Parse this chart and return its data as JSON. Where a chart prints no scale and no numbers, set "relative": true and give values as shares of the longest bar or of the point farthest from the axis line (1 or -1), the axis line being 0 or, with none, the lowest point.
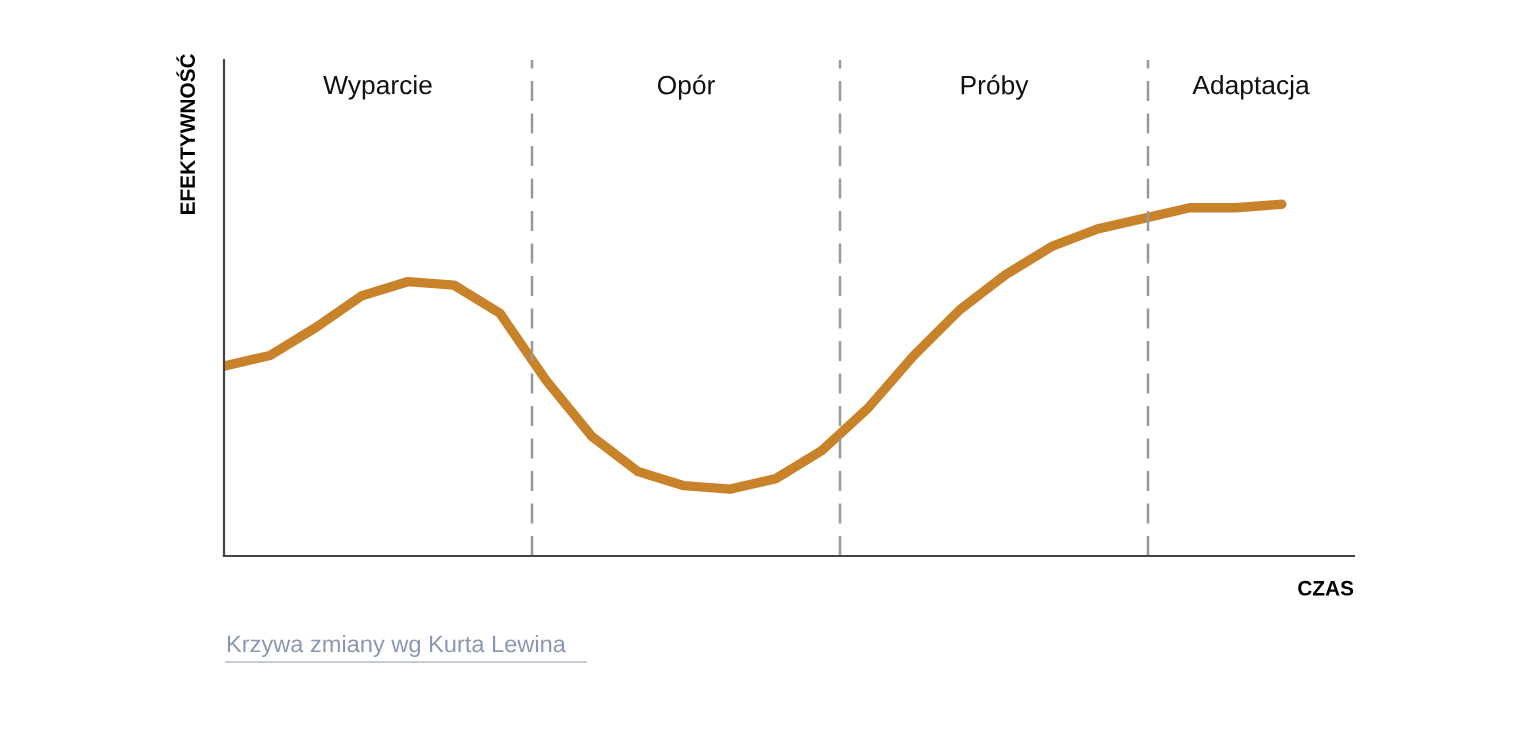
{
  "chart_data": {
    "type": "line",
    "relative": true,
    "ylabel": "EFEKTYWNOŚĆ",
    "xlabel": "CZAS",
    "categories": [
      null,
      null,
      null,
      null,
      null,
      null,
      null,
      null,
      null,
      null,
      null,
      null,
      null,
      null,
      null,
      null,
      null,
      null,
      null,
      null,
      null,
      null,
      null,
      null
    ],
    "series": [
      {
        "color": "#c8822a",
        "values": [
          0.54,
          0.57,
          0.65,
          0.74,
          0.78,
          0.77,
          0.69,
          0.5,
          0.34,
          0.24,
          0.2,
          0.19,
          0.22,
          0.3,
          0.42,
          0.57,
          0.7,
          0.8,
          0.88,
          0.93,
          0.96,
          0.99,
          0.99,
          1.0
        ]
      }
    ],
    "annotations": [
      "Wyparcie",
      "Opór",
      "Próby",
      "Adaptacja",
      "Krzywa zmiany wg Kurta Lewina"
    ],
    "marker": "none",
    "line_style": "solid"
  }
}
